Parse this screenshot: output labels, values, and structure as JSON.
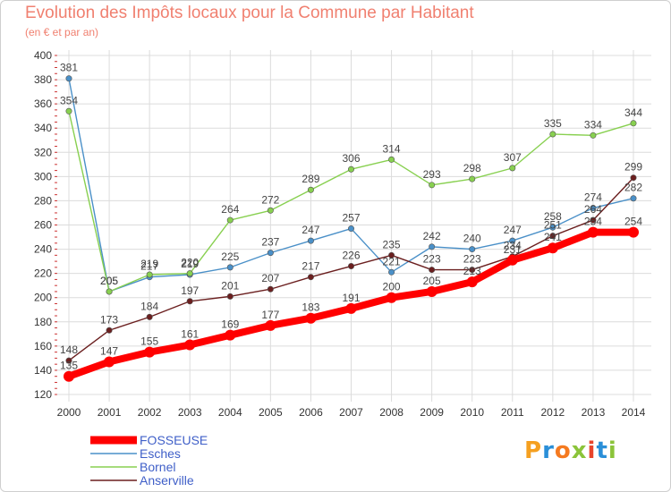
{
  "header": {
    "title": "Evolution des Impôts locaux pour la Commune par Habitant",
    "subtitle": "(en € et par an)"
  },
  "logo": {
    "text": "Proxiti"
  },
  "colors": {
    "title": "#f08070",
    "legend_text": "#3f5fc8",
    "grid": "#dcdcdc",
    "axis_text": "#333333"
  },
  "chart_data": {
    "type": "line",
    "title": "Evolution des Impôts locaux pour la Commune par Habitant",
    "subtitle": "(en € et par an)",
    "xlabel": "",
    "ylabel": "",
    "x": [
      "2000",
      "2001",
      "2002",
      "2003",
      "2004",
      "2005",
      "2006",
      "2007",
      "2008",
      "2009",
      "2010",
      "2011",
      "2012",
      "2013",
      "2014"
    ],
    "ylim": [
      120,
      400
    ],
    "yticks": [
      120,
      140,
      160,
      180,
      200,
      220,
      240,
      260,
      280,
      300,
      320,
      340,
      360,
      380,
      400
    ],
    "grid": true,
    "legend_position": "bottom-left",
    "series": [
      {
        "name": "FOSSEUSE",
        "color": "#ff0000",
        "emphasis": true,
        "values": [
          135,
          147,
          155,
          161,
          169,
          177,
          183,
          191,
          200,
          205,
          213,
          231,
          241,
          254,
          254
        ]
      },
      {
        "name": "Esches",
        "color": "#4a90c8",
        "emphasis": false,
        "values": [
          381,
          205,
          217,
          219,
          225,
          237,
          247,
          257,
          221,
          242,
          240,
          247,
          258,
          274,
          282
        ]
      },
      {
        "name": "Bornel",
        "color": "#88d050",
        "emphasis": false,
        "values": [
          354,
          205,
          219,
          220,
          264,
          272,
          289,
          306,
          314,
          293,
          298,
          307,
          335,
          334,
          344
        ]
      },
      {
        "name": "Anserville",
        "color": "#6b1f1f",
        "emphasis": false,
        "values": [
          148,
          173,
          184,
          197,
          201,
          207,
          217,
          226,
          235,
          223,
          223,
          234,
          251,
          264,
          299
        ]
      }
    ]
  }
}
